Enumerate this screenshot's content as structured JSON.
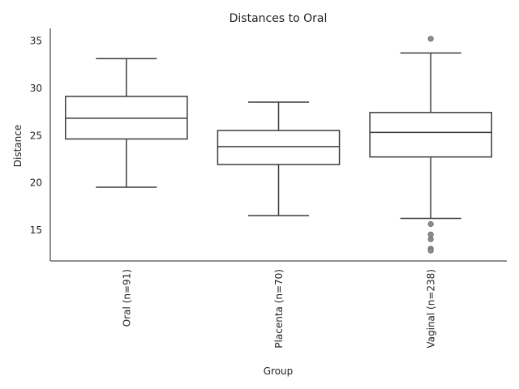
{
  "chart_data": {
    "type": "box",
    "title": "Distances to Oral",
    "xlabel": "Group",
    "ylabel": "Distance",
    "ylim": [
      11.7,
      36.3
    ],
    "yticks": [
      15,
      20,
      25,
      30,
      35
    ],
    "grid": false,
    "categories": [
      "Oral (n=91)",
      "Placenta (n=70)",
      "Vaginal (n=238)"
    ],
    "boxes": [
      {
        "whisker_low": 19.5,
        "q1": 24.6,
        "median": 26.8,
        "q3": 29.1,
        "whisker_high": 33.1,
        "outliers": []
      },
      {
        "whisker_low": 16.5,
        "q1": 21.9,
        "median": 23.8,
        "q3": 25.5,
        "whisker_high": 28.5,
        "outliers": []
      },
      {
        "whisker_low": 16.2,
        "q1": 22.7,
        "median": 25.3,
        "q3": 27.4,
        "whisker_high": 33.7,
        "outliers": [
          35.2,
          15.6,
          14.5,
          14.0,
          13.0,
          12.8
        ]
      }
    ],
    "colors": {
      "box_edge": "#3d3d3d",
      "box_fill": "#ffffff",
      "outlier": "#8c8c8c",
      "axis": "#222222"
    }
  }
}
